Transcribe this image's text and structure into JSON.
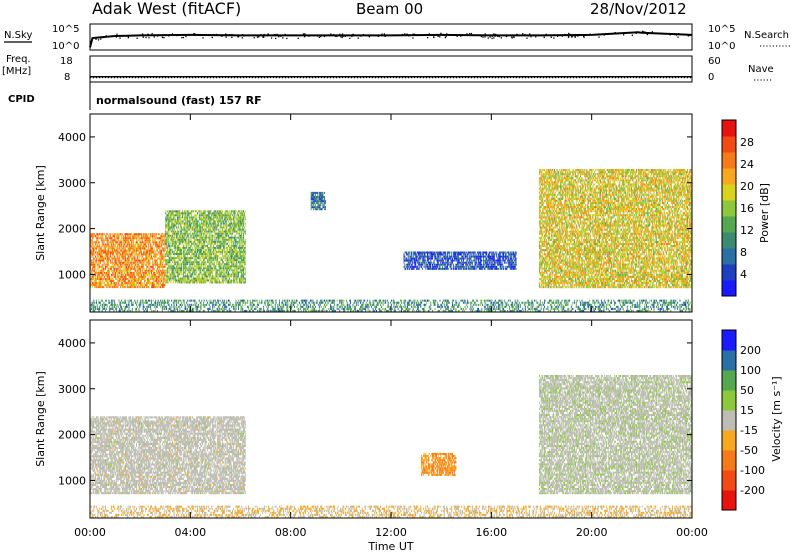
{
  "header": {
    "station": "Adak West (fitACF)",
    "beam": "Beam 00",
    "date": "28/Nov/2012"
  },
  "left_labels": {
    "nsky": "N.Sky",
    "freq_line1": "Freq.",
    "freq_line2": "[MHz]",
    "cpid": "CPID"
  },
  "right_labels": {
    "nsearch": "N.Search",
    "nave": "Nave"
  },
  "cpid_text": "normalsound (fast) 157 RF",
  "time_axis": {
    "label": "Time UT",
    "ticks": [
      "00:00",
      "04:00",
      "08:00",
      "12:00",
      "16:00",
      "20:00",
      "00:00"
    ]
  },
  "chart_data": [
    {
      "type": "line",
      "name": "N.Sky / N.Search",
      "y_ticks_left": [
        "10^5",
        "10^0"
      ],
      "y_ticks_right": [
        "10^5",
        "10^0"
      ],
      "ylim_log10": [
        0,
        5
      ],
      "description_series": "noise_sky",
      "x_hours": [
        0.0,
        0.1,
        1,
        2,
        4,
        6,
        8,
        10,
        12,
        14,
        16,
        18,
        20,
        21.8,
        22,
        24
      ],
      "y_log10": [
        0.5,
        2.3,
        2.7,
        2.8,
        2.9,
        2.8,
        2.8,
        2.8,
        2.8,
        2.9,
        2.8,
        2.8,
        2.9,
        3.4,
        3.3,
        2.9
      ]
    },
    {
      "type": "line",
      "name": "Freq / Nave",
      "y_ticks_left": [
        "18",
        "8"
      ],
      "y_ticks_right": [
        "60",
        "0"
      ],
      "ylim_left": [
        8,
        18
      ],
      "ylim_right": [
        0,
        60
      ],
      "x_hours": [
        0,
        24
      ],
      "freq_mhz": [
        10,
        10
      ],
      "nave": [
        10,
        10
      ]
    },
    {
      "type": "heatmap",
      "title": "Power",
      "ylabel": "Slant Range [km]",
      "xlabel": "Time UT",
      "xlim_hours": [
        0,
        24
      ],
      "ylim_km": [
        180,
        4500
      ],
      "y_ticks": [
        "4000",
        "3000",
        "2000",
        "1000"
      ],
      "colorbar": {
        "label": "Power [dB]",
        "ticks": [
          "28",
          "24",
          "20",
          "16",
          "12",
          "8",
          "4"
        ],
        "range": [
          0,
          30
        ],
        "colors": [
          "#1a1aff",
          "#1f3fbf",
          "#2a6fa5",
          "#3c8a6f",
          "#55a850",
          "#8cc83c",
          "#d9d21e",
          "#f7a820",
          "#f77a1a",
          "#f24a14",
          "#e8130f"
        ]
      },
      "regions": [
        {
          "t0": 0.0,
          "t1": 3.0,
          "r0": 700,
          "r1": 1900,
          "value": 22
        },
        {
          "t0": 3.0,
          "t1": 6.2,
          "r0": 800,
          "r1": 2400,
          "value": 14
        },
        {
          "t0": 17.9,
          "t1": 24.0,
          "r0": 700,
          "r1": 3300,
          "value": 18
        },
        {
          "t0": 12.5,
          "t1": 17.0,
          "r0": 1100,
          "r1": 1500,
          "value": 5
        },
        {
          "t0": 8.8,
          "t1": 9.4,
          "r0": 2400,
          "r1": 2800,
          "value": 8
        },
        {
          "t0": 0.0,
          "t1": 24.0,
          "r0": 180,
          "r1": 450,
          "value": 10
        }
      ]
    },
    {
      "type": "heatmap",
      "title": "Velocity",
      "ylabel": "Slant Range [km]",
      "xlabel": "Time UT",
      "xlim_hours": [
        0,
        24
      ],
      "ylim_km": [
        180,
        4500
      ],
      "y_ticks": [
        "4000",
        "3000",
        "2000",
        "1000"
      ],
      "colorbar": {
        "label": "Velocity [m s⁻¹]",
        "ticks": [
          "200",
          "100",
          "50",
          "15",
          "-15",
          "-50",
          "-100",
          "-200"
        ],
        "range": [
          -250,
          250
        ],
        "colors": [
          "#e8130f",
          "#f24a14",
          "#f77a1a",
          "#f7a820",
          "#bdbdb4",
          "#8cc83c",
          "#55a850",
          "#2a6fa5",
          "#1a1aff"
        ]
      },
      "regions": [
        {
          "t0": 0.0,
          "t1": 6.2,
          "r0": 700,
          "r1": 2400,
          "value": 0
        },
        {
          "t0": 17.9,
          "t1": 24.0,
          "r0": 700,
          "r1": 3300,
          "value": 10
        },
        {
          "t0": 13.2,
          "t1": 14.6,
          "r0": 1100,
          "r1": 1600,
          "value": -80
        },
        {
          "t0": 0.0,
          "t1": 24.0,
          "r0": 180,
          "r1": 450,
          "value": -30
        }
      ]
    }
  ]
}
